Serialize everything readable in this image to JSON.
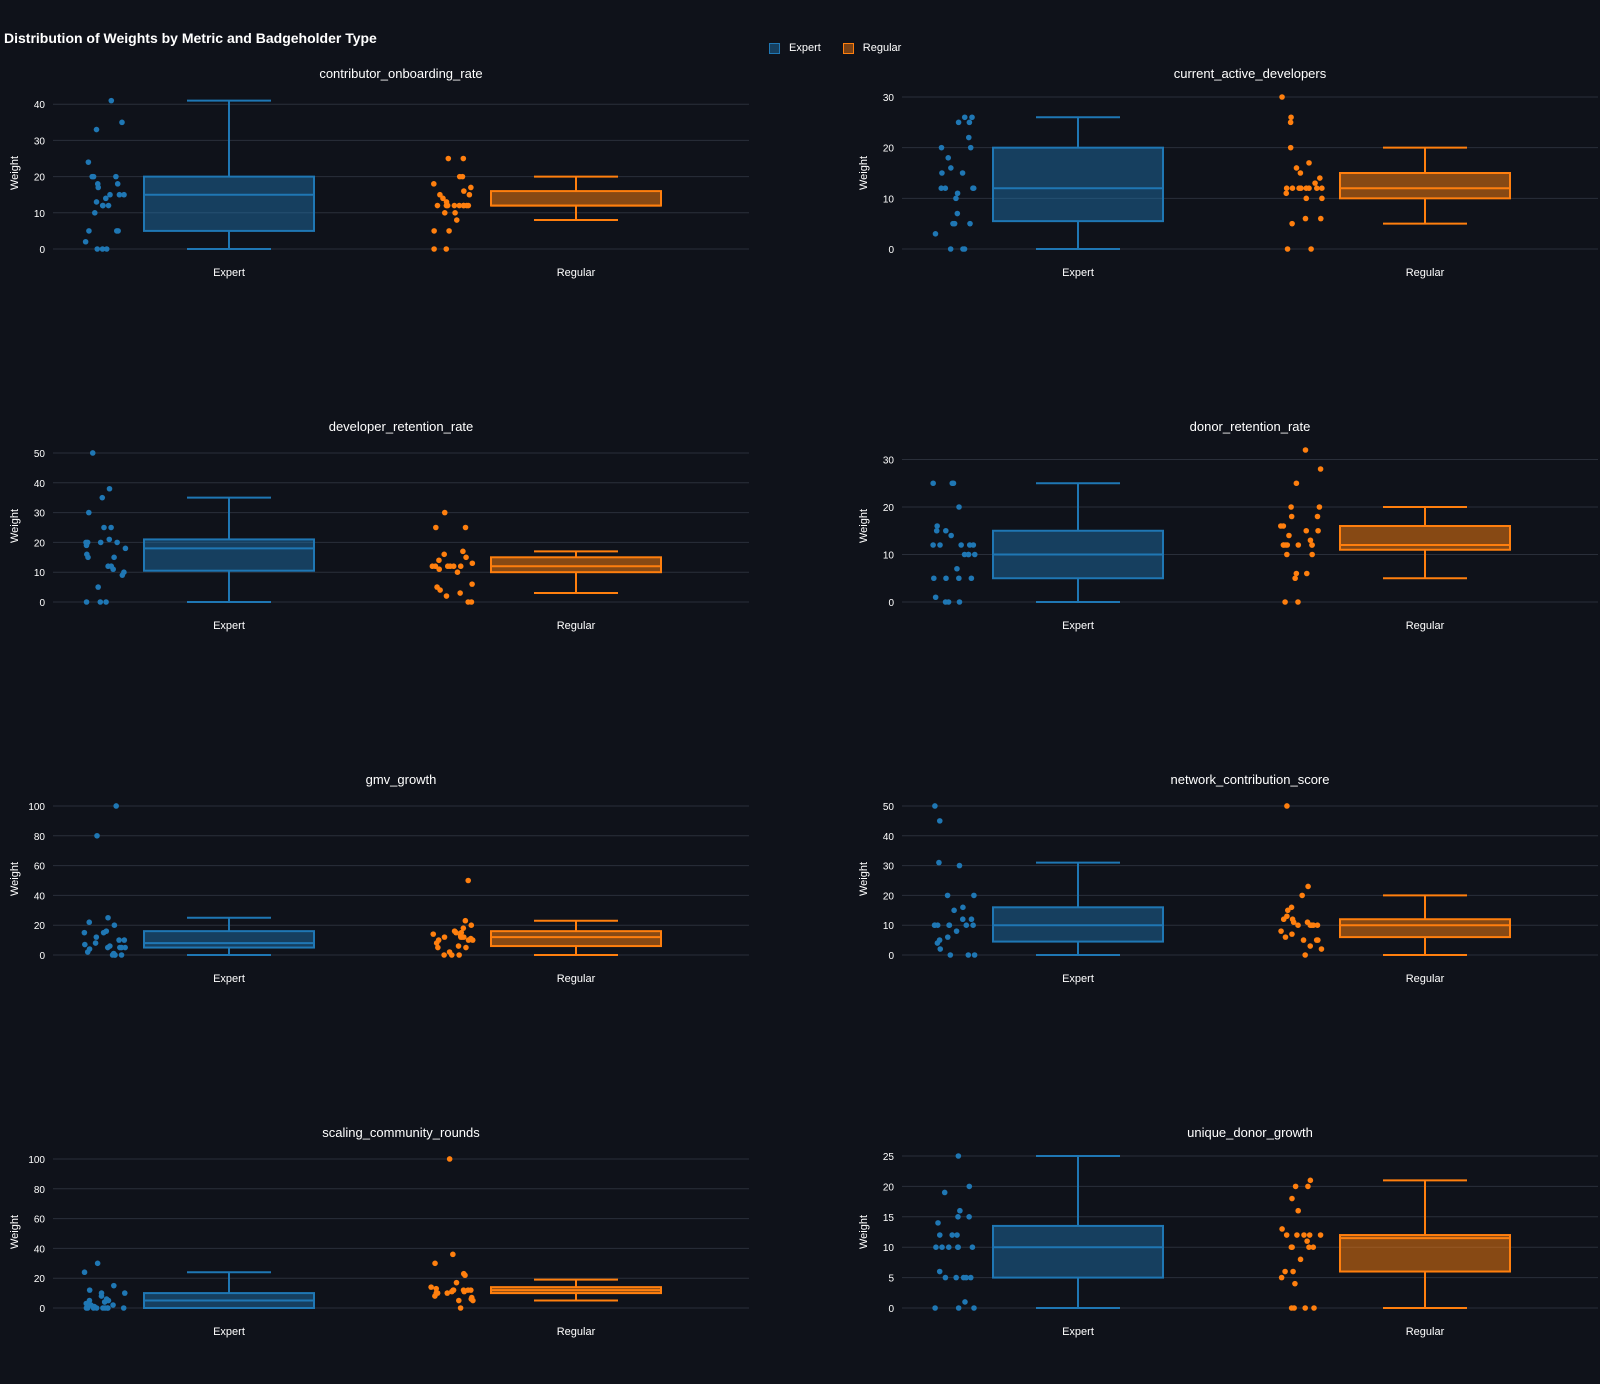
{
  "title": "Distribution of Weights by Metric and Badgeholder Type",
  "legend": {
    "items": [
      {
        "name": "Expert",
        "color": "#1f77b4"
      },
      {
        "name": "Regular",
        "color": "#ff7f0e"
      }
    ]
  },
  "chart_data": [
    {
      "type": "box",
      "title": "contributor_onboarding_rate",
      "ylabel": "Weight",
      "categories": [
        "Expert",
        "Regular"
      ],
      "ylim": [
        0,
        42
      ],
      "yticks": [
        0,
        10,
        20,
        30,
        40
      ],
      "grid": true,
      "series": [
        {
          "name": "Expert",
          "color": "#1f77b4",
          "box": {
            "lower": 0,
            "q1": 5,
            "median": 15,
            "q3": 20,
            "upper": 41
          },
          "points": [
            41,
            35,
            33,
            24,
            20,
            20,
            20,
            18,
            18,
            17,
            15,
            15,
            15,
            14,
            13,
            12,
            12,
            12,
            10,
            5,
            5,
            5,
            2,
            0,
            0,
            0
          ]
        },
        {
          "name": "Regular",
          "color": "#ff7f0e",
          "box": {
            "lower": 8,
            "q1": 12,
            "median": 12,
            "q3": 16,
            "upper": 20
          },
          "points": [
            25,
            25,
            20,
            20,
            18,
            17,
            16,
            15,
            15,
            14,
            13,
            12,
            12,
            12,
            12,
            12,
            12,
            12,
            12,
            12,
            10,
            10,
            8,
            5,
            5,
            0,
            0
          ]
        }
      ]
    },
    {
      "type": "box",
      "title": "current_active_developers",
      "ylabel": "Weight",
      "categories": [
        "Expert",
        "Regular"
      ],
      "ylim": [
        0,
        30
      ],
      "yticks": [
        0,
        10,
        20,
        30
      ],
      "grid": true,
      "series": [
        {
          "name": "Expert",
          "color": "#1f77b4",
          "box": {
            "lower": 0,
            "q1": 5.5,
            "median": 12,
            "q3": 20,
            "upper": 26
          },
          "points": [
            26,
            26,
            25,
            25,
            22,
            20,
            20,
            18,
            16,
            15,
            15,
            12,
            12,
            12,
            12,
            11,
            10,
            7,
            5,
            5,
            5,
            3,
            0,
            0,
            0
          ]
        },
        {
          "name": "Regular",
          "color": "#ff7f0e",
          "box": {
            "lower": 5,
            "q1": 10,
            "median": 12,
            "q3": 15,
            "upper": 20
          },
          "points": [
            30,
            26,
            25,
            20,
            17,
            16,
            15,
            14,
            13,
            12,
            12,
            12,
            12,
            12,
            12,
            12,
            12,
            11,
            10,
            10,
            6,
            6,
            5,
            0,
            0
          ]
        }
      ]
    },
    {
      "type": "box",
      "title": "developer_retention_rate",
      "ylabel": "Weight",
      "categories": [
        "Expert",
        "Regular"
      ],
      "ylim": [
        0,
        51
      ],
      "yticks": [
        0,
        10,
        20,
        30,
        40,
        50
      ],
      "grid": true,
      "series": [
        {
          "name": "Expert",
          "color": "#1f77b4",
          "box": {
            "lower": 0,
            "q1": 10.5,
            "median": 18,
            "q3": 21,
            "upper": 35
          },
          "points": [
            50,
            38,
            35,
            30,
            25,
            25,
            21,
            20,
            20,
            20,
            20,
            19,
            18,
            16,
            15,
            15,
            12,
            12,
            11,
            10,
            9,
            5,
            0,
            0,
            0
          ]
        },
        {
          "name": "Regular",
          "color": "#ff7f0e",
          "box": {
            "lower": 3,
            "q1": 10,
            "median": 12,
            "q3": 15,
            "upper": 17
          },
          "points": [
            30,
            25,
            25,
            17,
            16,
            15,
            14,
            13,
            12,
            12,
            12,
            12,
            12,
            12,
            11,
            10,
            6,
            5,
            4,
            3,
            2,
            0,
            0
          ]
        }
      ]
    },
    {
      "type": "box",
      "title": "donor_retention_rate",
      "ylabel": "Weight",
      "categories": [
        "Expert",
        "Regular"
      ],
      "ylim": [
        0,
        32
      ],
      "yticks": [
        0,
        10,
        20,
        30
      ],
      "grid": true,
      "series": [
        {
          "name": "Expert",
          "color": "#1f77b4",
          "box": {
            "lower": 0,
            "q1": 5,
            "median": 10,
            "q3": 15,
            "upper": 25
          },
          "points": [
            25,
            25,
            25,
            20,
            16,
            15,
            15,
            14,
            12,
            12,
            12,
            12,
            12,
            10,
            10,
            10,
            10,
            7,
            5,
            5,
            5,
            5,
            1,
            0,
            0,
            0
          ]
        },
        {
          "name": "Regular",
          "color": "#ff7f0e",
          "box": {
            "lower": 5,
            "q1": 11,
            "median": 12,
            "q3": 16,
            "upper": 20
          },
          "points": [
            32,
            28,
            25,
            20,
            20,
            18,
            18,
            16,
            16,
            15,
            15,
            14,
            13,
            12,
            12,
            12,
            12,
            12,
            12,
            12,
            10,
            10,
            6,
            6,
            5,
            0,
            0
          ]
        }
      ]
    },
    {
      "type": "box",
      "title": "gmv_growth",
      "ylabel": "Weight",
      "categories": [
        "Expert",
        "Regular"
      ],
      "ylim": [
        0,
        102
      ],
      "yticks": [
        0,
        20,
        40,
        60,
        80,
        100
      ],
      "grid": true,
      "series": [
        {
          "name": "Expert",
          "color": "#1f77b4",
          "box": {
            "lower": 0,
            "q1": 5,
            "median": 8,
            "q3": 16,
            "upper": 25
          },
          "points": [
            100,
            80,
            25,
            22,
            20,
            16,
            15,
            15,
            12,
            10,
            10,
            8,
            7,
            6,
            5,
            5,
            5,
            5,
            4,
            2,
            1,
            0,
            0,
            0,
            0
          ]
        },
        {
          "name": "Regular",
          "color": "#ff7f0e",
          "box": {
            "lower": 0,
            "q1": 6,
            "median": 12,
            "q3": 16,
            "upper": 23
          },
          "points": [
            50,
            23,
            20,
            18,
            16,
            15,
            15,
            14,
            13,
            12,
            12,
            12,
            12,
            11,
            10,
            10,
            10,
            8,
            6,
            5,
            5,
            2,
            0,
            0,
            0
          ]
        }
      ]
    },
    {
      "type": "box",
      "title": "network_contribution_score",
      "ylabel": "Weight",
      "categories": [
        "Expert",
        "Regular"
      ],
      "ylim": [
        0,
        51
      ],
      "yticks": [
        0,
        10,
        20,
        30,
        40,
        50
      ],
      "grid": true,
      "series": [
        {
          "name": "Expert",
          "color": "#1f77b4",
          "box": {
            "lower": 0,
            "q1": 4.5,
            "median": 10,
            "q3": 16,
            "upper": 31
          },
          "points": [
            50,
            45,
            31,
            30,
            20,
            20,
            16,
            15,
            12,
            12,
            10,
            10,
            10,
            10,
            10,
            10,
            10,
            8,
            6,
            5,
            4,
            2,
            0,
            0,
            0
          ]
        },
        {
          "name": "Regular",
          "color": "#ff7f0e",
          "box": {
            "lower": 0,
            "q1": 6,
            "median": 10,
            "q3": 12,
            "upper": 20
          },
          "points": [
            50,
            23,
            20,
            16,
            15,
            13,
            12,
            12,
            11,
            11,
            10,
            10,
            10,
            10,
            10,
            8,
            7,
            6,
            5,
            5,
            5,
            3,
            2,
            0
          ]
        }
      ]
    },
    {
      "type": "box",
      "title": "scaling_community_rounds",
      "ylabel": "Weight",
      "categories": [
        "Expert",
        "Regular"
      ],
      "ylim": [
        0,
        102
      ],
      "yticks": [
        0,
        20,
        40,
        60,
        80,
        100
      ],
      "grid": true,
      "series": [
        {
          "name": "Expert",
          "color": "#1f77b4",
          "box": {
            "lower": 0,
            "q1": 0,
            "median": 5,
            "q3": 10,
            "upper": 24
          },
          "points": [
            30,
            24,
            15,
            12,
            10,
            10,
            8,
            6,
            5,
            5,
            5,
            4,
            3,
            2,
            2,
            1,
            0,
            0,
            0,
            0,
            0,
            0,
            0,
            0,
            0
          ]
        },
        {
          "name": "Regular",
          "color": "#ff7f0e",
          "box": {
            "lower": 5,
            "q1": 10,
            "median": 12,
            "q3": 14,
            "upper": 19
          },
          "points": [
            100,
            36,
            30,
            23,
            22,
            17,
            14,
            13,
            12,
            12,
            12,
            12,
            12,
            11,
            11,
            10,
            10,
            10,
            8,
            7,
            6,
            5,
            5,
            0
          ]
        }
      ]
    },
    {
      "type": "box",
      "title": "unique_donor_growth",
      "ylabel": "Weight",
      "categories": [
        "Expert",
        "Regular"
      ],
      "ylim": [
        0,
        25
      ],
      "yticks": [
        0,
        5,
        10,
        15,
        20,
        25
      ],
      "grid": true,
      "series": [
        {
          "name": "Expert",
          "color": "#1f77b4",
          "box": {
            "lower": 0,
            "q1": 5,
            "median": 10,
            "q3": 13.5,
            "upper": 25
          },
          "points": [
            25,
            20,
            19,
            16,
            15,
            15,
            14,
            12,
            12,
            12,
            10,
            10,
            10,
            10,
            10,
            10,
            6,
            5,
            5,
            5,
            5,
            5,
            1,
            0,
            0,
            0
          ]
        },
        {
          "name": "Regular",
          "color": "#ff7f0e",
          "box": {
            "lower": 0,
            "q1": 6,
            "median": 11.5,
            "q3": 12,
            "upper": 21
          },
          "points": [
            21,
            20,
            20,
            18,
            16,
            13,
            12,
            12,
            12,
            12,
            12,
            11,
            10,
            10,
            10,
            10,
            8,
            6,
            6,
            5,
            4,
            0,
            0,
            0,
            0
          ]
        }
      ]
    }
  ]
}
